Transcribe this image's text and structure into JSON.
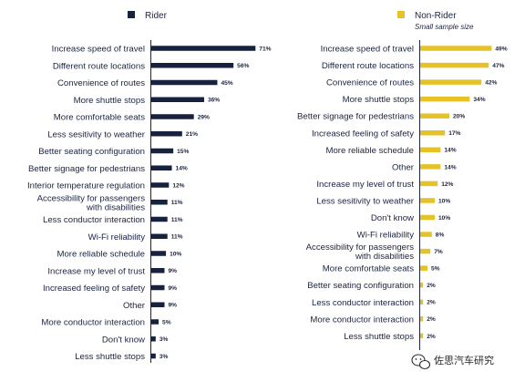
{
  "chart_data": [
    {
      "type": "bar",
      "orientation": "horizontal",
      "legend": {
        "label": "Rider",
        "color": "#17223f"
      },
      "color": "#17223f",
      "unit": "%",
      "categories": [
        "Increase speed of travel",
        "Different route locations",
        "Convenience of routes",
        "More shuttle stops",
        "More comfortable seats",
        "Less sesitivity to weather",
        "Better seating configuration",
        "Better signage for pedestrians",
        "Interior temperature regulation",
        "Accessibility for passengers with disabilities",
        "Less conductor interaction",
        "Wi-Fi reliability",
        "More reliable schedule",
        "Increase my level of trust",
        "Increased feeling of safety",
        "Other",
        "More conductor interaction",
        "Don't know",
        "Less shuttle stops"
      ],
      "values": [
        71,
        56,
        45,
        36,
        29,
        21,
        15,
        14,
        12,
        11,
        11,
        11,
        10,
        9,
        9,
        9,
        5,
        3,
        3
      ]
    },
    {
      "type": "bar",
      "orientation": "horizontal",
      "legend": {
        "label": "Non-Rider",
        "note": "Small sample size",
        "color": "#e6c229"
      },
      "color": "#e6c229",
      "unit": "%",
      "categories": [
        "Increase speed of travel",
        "Different route locations",
        "Convenience of routes",
        "More shuttle stops",
        "Better signage for pedestrians",
        "Increased feeling of safety",
        "More reliable schedule",
        "Other",
        "Increase my level of trust",
        "Less sesitivity to weather",
        "Don't know",
        "Wi-Fi reliability",
        "Accessibility for passengers with disabilities",
        "More comfortable seats",
        "Better seating configuration",
        "Less conductor interaction",
        "More conductor interaction",
        "Less shuttle stops"
      ],
      "values": [
        49,
        47,
        42,
        34,
        20,
        17,
        14,
        14,
        12,
        10,
        10,
        8,
        7,
        5,
        2,
        2,
        2,
        2
      ]
    }
  ],
  "watermark": "佐思汽车研究",
  "watermark_icon": "wechat-icon"
}
